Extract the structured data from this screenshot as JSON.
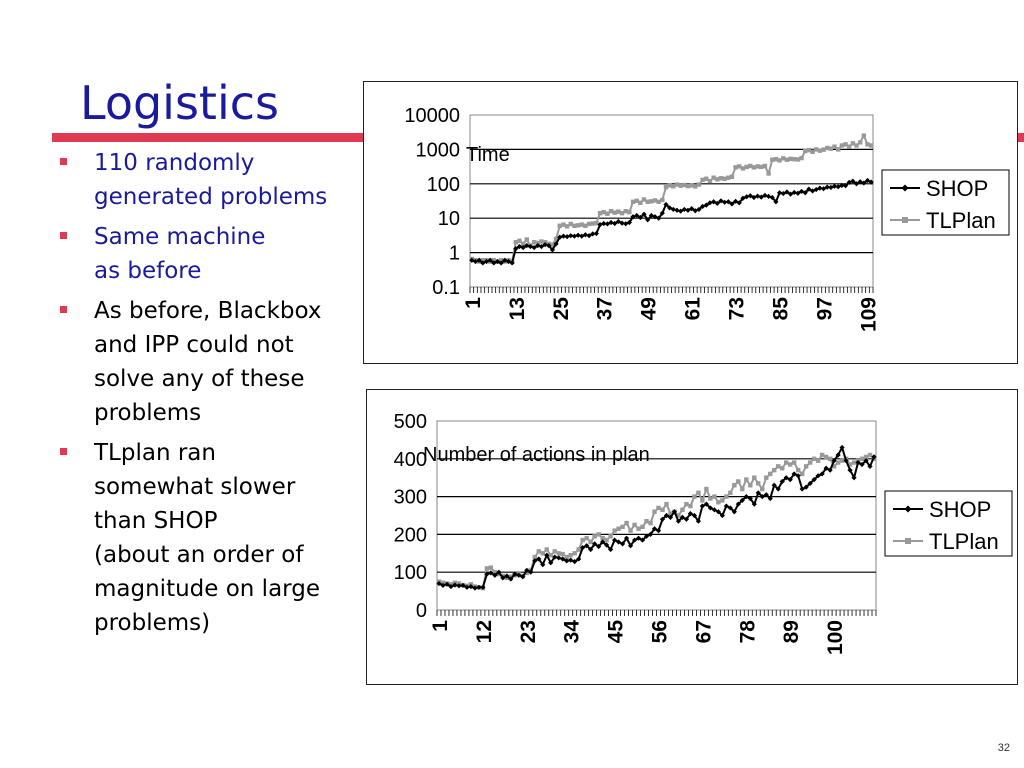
{
  "slide": {
    "title": "Logistics",
    "page_number": "32",
    "accent_color": "#e03a52",
    "title_color": "#1a1a9c"
  },
  "bullets": [
    {
      "text": "110 randomly\ngenerated problems",
      "color": "blue"
    },
    {
      "text": "Same machine\nas before",
      "color": "blue"
    },
    {
      "text": "As before, Blackbox\nand IPP could not\nsolve any of these\nproblems",
      "color": "black"
    },
    {
      "text": "TLplan ran\nsomewhat slower\nthan SHOP\n(about an order of\nmagnitude on large\nproblems)",
      "color": "black"
    }
  ],
  "chart_data": [
    {
      "type": "line",
      "title": "Time",
      "yscale": "log",
      "ylim": [
        0.1,
        10000
      ],
      "yticks": [
        "10000",
        "1000",
        "100",
        "10",
        "1",
        "0.1"
      ],
      "xticks": [
        "1",
        "13",
        "25",
        "37",
        "49",
        "61",
        "73",
        "85",
        "97",
        "109"
      ],
      "x_count": 110,
      "grid": true,
      "legend_position": "right",
      "series": [
        {
          "name": "SHOP",
          "color": "#000000",
          "marker": "diamond",
          "values": [
            0.6,
            0.55,
            0.6,
            0.5,
            0.55,
            0.6,
            0.5,
            0.55,
            0.5,
            0.6,
            0.55,
            0.5,
            1.3,
            1.5,
            1.4,
            1.6,
            1.5,
            1.4,
            1.6,
            1.5,
            1.7,
            1.6,
            1.2,
            1.8,
            2.8,
            3.0,
            2.9,
            3.1,
            3.0,
            3.2,
            3.0,
            3.3,
            3.1,
            3.5,
            3.6,
            6.5,
            7.0,
            6.8,
            7.5,
            7.0,
            8.0,
            7.2,
            6.9,
            7.5,
            11.0,
            12.0,
            10.5,
            13.0,
            9.0,
            12.0,
            11.0,
            10.0,
            14.0,
            25.0,
            20.0,
            18.0,
            17.0,
            16.0,
            18.0,
            17.0,
            19.0,
            16.5,
            18.0,
            22.0,
            24.0,
            28.0,
            30.0,
            27.0,
            32.0,
            29.0,
            30.0,
            26.0,
            31.0,
            28.0,
            38.0,
            42.0,
            45.0,
            40.0,
            44.0,
            41.0,
            46.0,
            43.0,
            40.0,
            30.0,
            55.0,
            52.0,
            58.0,
            50.0,
            56.0,
            53.0,
            60.0,
            55.0,
            70.0,
            62.0,
            68.0,
            75.0,
            72.0,
            80.0,
            78.0,
            85.0,
            82.0,
            90.0,
            88.0,
            110.0,
            120.0,
            100.0,
            115.0,
            105.0,
            125.0,
            112.0
          ]
        },
        {
          "name": "TLPlan",
          "color": "#999999",
          "marker": "square",
          "values": [
            0.65,
            0.6,
            0.55,
            0.6,
            0.6,
            0.55,
            0.6,
            0.55,
            0.6,
            0.55,
            0.6,
            0.55,
            2.0,
            2.2,
            1.8,
            2.4,
            1.6,
            2.0,
            1.9,
            2.1,
            2.0,
            1.8,
            1.7,
            2.5,
            6.0,
            6.5,
            5.8,
            6.8,
            6.0,
            6.2,
            6.5,
            6.0,
            6.8,
            7.0,
            7.2,
            14.0,
            15.0,
            13.5,
            16.0,
            14.5,
            15.5,
            14.0,
            16.0,
            15.0,
            30.0,
            32.0,
            28.0,
            35.0,
            30.0,
            31.0,
            33.0,
            30.0,
            34.0,
            80.0,
            90.0,
            85.0,
            95.0,
            88.0,
            92.0,
            86.0,
            90.0,
            84.0,
            95.0,
            130.0,
            140.0,
            120.0,
            150.0,
            135.0,
            145.0,
            140.0,
            150.0,
            160.0,
            300.0,
            320.0,
            280.0,
            310.0,
            330.0,
            300.0,
            320.0,
            310.0,
            330.0,
            200.0,
            500.0,
            520.0,
            480.0,
            550.0,
            500.0,
            530.0,
            520.0,
            510.0,
            560.0,
            900.0,
            950.0,
            850.0,
            1000.0,
            920.0,
            980.0,
            1100.0,
            1050.0,
            1200.0,
            1000.0,
            1300.0,
            1400.0,
            1200.0,
            1500.0,
            1300.0,
            1600.0,
            2500.0,
            1400.0,
            1300.0
          ]
        }
      ]
    },
    {
      "type": "line",
      "title": "Number of actions in plan",
      "ylim": [
        0,
        500
      ],
      "yticks": [
        "500",
        "400",
        "300",
        "200",
        "100",
        "0"
      ],
      "xticks": [
        "1",
        "12",
        "23",
        "34",
        "45",
        "56",
        "67",
        "78",
        "89",
        "100"
      ],
      "x_count": 110,
      "grid": true,
      "legend_position": "right",
      "series": [
        {
          "name": "SHOP",
          "color": "#000000",
          "marker": "diamond",
          "values": [
            70,
            65,
            68,
            62,
            66,
            64,
            65,
            60,
            62,
            58,
            60,
            60,
            95,
            98,
            92,
            100,
            85,
            90,
            82,
            95,
            92,
            88,
            105,
            100,
            130,
            135,
            120,
            145,
            125,
            140,
            138,
            135,
            130,
            132,
            128,
            135,
            165,
            170,
            160,
            175,
            168,
            180,
            172,
            160,
            185,
            180,
            175,
            190,
            170,
            185,
            190,
            185,
            195,
            200,
            215,
            210,
            240,
            250,
            245,
            260,
            235,
            245,
            240,
            255,
            250,
            235,
            275,
            280,
            270,
            265,
            260,
            250,
            275,
            270,
            260,
            280,
            290,
            300,
            295,
            280,
            310,
            300,
            305,
            295,
            330,
            320,
            340,
            350,
            345,
            360,
            355,
            320,
            325,
            335,
            345,
            355,
            360,
            375,
            370,
            395,
            410,
            430,
            395,
            370,
            350,
            390,
            385,
            395,
            380,
            405
          ]
        },
        {
          "name": "TLPlan",
          "color": "#999999",
          "marker": "square",
          "values": [
            75,
            72,
            70,
            68,
            72,
            70,
            66,
            64,
            68,
            62,
            60,
            58,
            110,
            112,
            100,
            95,
            90,
            85,
            88,
            92,
            95,
            90,
            98,
            105,
            140,
            155,
            150,
            160,
            145,
            155,
            150,
            148,
            140,
            145,
            150,
            160,
            185,
            190,
            180,
            195,
            200,
            190,
            185,
            195,
            210,
            215,
            220,
            230,
            210,
            225,
            215,
            220,
            235,
            230,
            260,
            270,
            265,
            280,
            255,
            260,
            250,
            265,
            280,
            275,
            300,
            310,
            290,
            320,
            295,
            300,
            285,
            290,
            300,
            310,
            330,
            340,
            320,
            345,
            330,
            350,
            335,
            320,
            350,
            360,
            370,
            380,
            375,
            390,
            385,
            390,
            370,
            360,
            380,
            390,
            400,
            395,
            410,
            405,
            400,
            380,
            390,
            395,
            400,
            385,
            390,
            395,
            400,
            405,
            410,
            400
          ]
        }
      ]
    }
  ]
}
